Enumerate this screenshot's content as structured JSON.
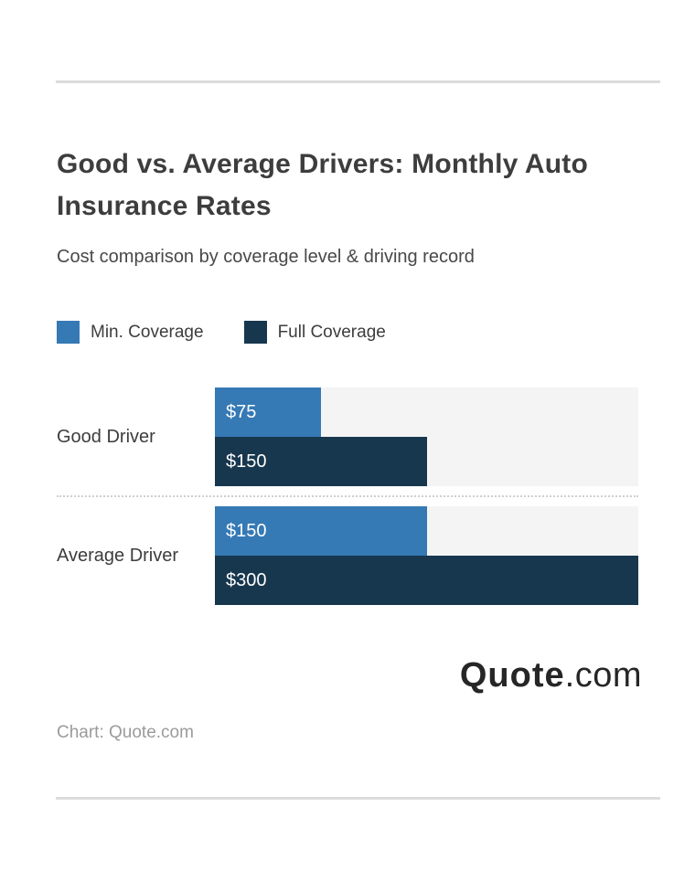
{
  "header": {
    "title": "Good vs. Average Drivers: Monthly Auto Insurance Rates",
    "subtitle": "Cost comparison by coverage level & driving record"
  },
  "legend": [
    {
      "label": "Min. Coverage",
      "color": "#3579b5"
    },
    {
      "label": "Full Coverage",
      "color": "#17374e"
    }
  ],
  "chart_data": {
    "type": "bar",
    "orientation": "horizontal",
    "title": "Good vs. Average Drivers: Monthly Auto Insurance Rates",
    "subtitle": "Cost comparison by coverage level & driving record",
    "categories": [
      "Good Driver",
      "Average Driver"
    ],
    "series": [
      {
        "name": "Min. Coverage",
        "color": "#3579b5",
        "values": [
          75,
          150
        ],
        "labels": [
          "$75",
          "$150"
        ]
      },
      {
        "name": "Full Coverage",
        "color": "#17374e",
        "values": [
          150,
          300
        ],
        "labels": [
          "$150",
          "$300"
        ]
      }
    ],
    "value_prefix": "$",
    "value_max": 300,
    "xlim": [
      0,
      300
    ],
    "grid": false,
    "legend_position": "top",
    "track_color": "#f4f4f4"
  },
  "branding": {
    "logo_bold": "Quote",
    "logo_rest": ".com"
  },
  "footer": {
    "caption": "Chart: Quote.com"
  },
  "colors": {
    "accent_blue": "#3579b5",
    "accent_navy": "#17374e",
    "bar_track": "#f4f4f4",
    "divider": "#dcdcdc",
    "text_dark": "#3d3d3d",
    "text_muted": "#9b9b9b"
  }
}
